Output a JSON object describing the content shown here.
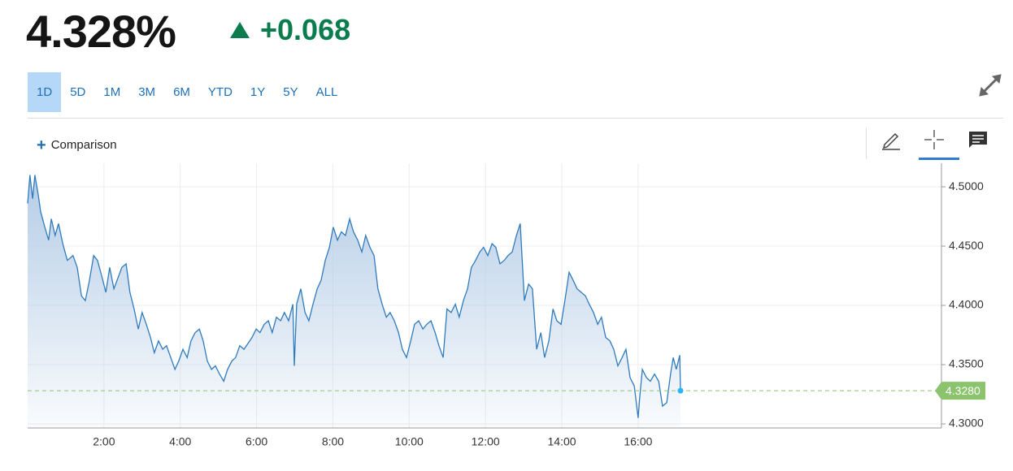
{
  "header": {
    "price": "4.328%",
    "change": "+0.068"
  },
  "ranges": [
    "1D",
    "5D",
    "1M",
    "3M",
    "6M",
    "YTD",
    "1Y",
    "5Y",
    "ALL"
  ],
  "selected_range": "1D",
  "toolbar": {
    "comparison": "Comparison"
  },
  "chart_data": {
    "type": "line",
    "color": "#2f7bbd",
    "x": [
      0,
      0.06,
      0.13,
      0.19,
      0.28,
      0.34,
      0.45,
      0.55,
      0.62,
      0.72,
      0.81,
      0.92,
      1.04,
      1.19,
      1.3,
      1.41,
      1.51,
      1.62,
      1.73,
      1.83,
      1.94,
      2.05,
      2.15,
      2.26,
      2.47,
      2.58,
      2.68,
      2.79,
      2.9,
      3.0,
      3.11,
      3.22,
      3.32,
      3.43,
      3.54,
      3.64,
      3.75,
      3.86,
      3.96,
      4.07,
      4.18,
      4.28,
      4.39,
      4.5,
      4.6,
      4.71,
      4.82,
      4.92,
      5.03,
      5.14,
      5.24,
      5.35,
      5.45,
      5.56,
      5.67,
      5.88,
      5.99,
      6.09,
      6.2,
      6.31,
      6.41,
      6.52,
      6.63,
      6.73,
      6.84,
      6.95,
      6.99,
      7.05,
      7.16,
      7.27,
      7.37,
      7.48,
      7.59,
      7.69,
      7.8,
      7.91,
      8.01,
      8.12,
      8.22,
      8.33,
      8.44,
      8.54,
      8.65,
      8.76,
      8.86,
      8.97,
      9.08,
      9.18,
      9.29,
      9.4,
      9.5,
      9.61,
      9.72,
      9.82,
      9.93,
      10.04,
      10.14,
      10.25,
      10.36,
      10.46,
      10.57,
      10.68,
      10.78,
      10.89,
      10.99,
      11.1,
      11.21,
      11.31,
      11.42,
      11.53,
      11.63,
      11.74,
      11.85,
      11.95,
      12.06,
      12.17,
      12.27,
      12.38,
      12.49,
      12.59,
      12.7,
      12.81,
      12.91,
      13.02,
      13.13,
      13.23,
      13.34,
      13.45,
      13.55,
      13.66,
      13.77,
      13.87,
      13.98,
      14.08,
      14.19,
      14.3,
      14.4,
      14.51,
      14.62,
      14.72,
      14.83,
      14.94,
      15.04,
      15.15,
      15.26,
      15.36,
      15.47,
      15.58,
      15.68,
      15.79,
      15.9,
      16.0,
      16.04,
      16.11,
      16.22,
      16.32,
      16.43,
      16.54,
      16.64,
      16.75,
      16.85,
      16.92,
      17.0,
      17.09,
      17.11
    ],
    "values": [
      4.486,
      4.51,
      4.49,
      4.51,
      4.493,
      4.479,
      4.466,
      4.455,
      4.473,
      4.459,
      4.469,
      4.452,
      4.438,
      4.442,
      4.432,
      4.408,
      4.404,
      4.421,
      4.442,
      4.438,
      4.425,
      4.411,
      4.432,
      4.414,
      4.432,
      4.435,
      4.411,
      4.397,
      4.38,
      4.394,
      4.384,
      4.373,
      4.36,
      4.37,
      4.363,
      4.366,
      4.356,
      4.346,
      4.353,
      4.363,
      4.356,
      4.37,
      4.377,
      4.38,
      4.37,
      4.353,
      4.346,
      4.349,
      4.342,
      4.336,
      4.346,
      4.353,
      4.356,
      4.366,
      4.363,
      4.373,
      4.38,
      4.377,
      4.384,
      4.387,
      4.377,
      4.39,
      4.387,
      4.394,
      4.387,
      4.401,
      4.349,
      4.401,
      4.414,
      4.394,
      4.387,
      4.401,
      4.414,
      4.421,
      4.438,
      4.449,
      4.466,
      4.455,
      4.462,
      4.459,
      4.473,
      4.462,
      4.455,
      4.445,
      4.459,
      4.449,
      4.442,
      4.414,
      4.401,
      4.39,
      4.394,
      4.387,
      4.377,
      4.363,
      4.356,
      4.37,
      4.384,
      4.387,
      4.38,
      4.384,
      4.387,
      4.377,
      4.366,
      4.356,
      4.397,
      4.394,
      4.401,
      4.39,
      4.404,
      4.414,
      4.432,
      4.438,
      4.445,
      4.449,
      4.442,
      4.452,
      4.449,
      4.435,
      4.438,
      4.442,
      4.445,
      4.459,
      4.469,
      4.404,
      4.418,
      4.414,
      4.363,
      4.377,
      4.356,
      4.37,
      4.397,
      4.387,
      4.384,
      4.404,
      4.428,
      4.421,
      4.414,
      4.411,
      4.408,
      4.401,
      4.394,
      4.384,
      4.39,
      4.373,
      4.37,
      4.363,
      4.349,
      4.356,
      4.363,
      4.339,
      4.332,
      4.305,
      4.322,
      4.346,
      4.339,
      4.336,
      4.342,
      4.336,
      4.315,
      4.318,
      4.342,
      4.356,
      4.346,
      4.358,
      4.328
    ],
    "xlim": [
      0,
      23.95
    ],
    "ylim": [
      4.2966,
      4.5199
    ],
    "xticks": [
      {
        "value": 2,
        "label": "2:00"
      },
      {
        "value": 4,
        "label": "4:00"
      },
      {
        "value": 6,
        "label": "6:00"
      },
      {
        "value": 8,
        "label": "8:00"
      },
      {
        "value": 10,
        "label": "10:00"
      },
      {
        "value": 12,
        "label": "12:00"
      },
      {
        "value": 14,
        "label": "14:00"
      },
      {
        "value": 16,
        "label": "16:00"
      }
    ],
    "yticks": [
      {
        "value": 4.3,
        "label": "4.3000"
      },
      {
        "value": 4.35,
        "label": "4.3500"
      },
      {
        "value": 4.4,
        "label": "4.4000"
      },
      {
        "value": 4.45,
        "label": "4.4500"
      },
      {
        "value": 4.5,
        "label": "4.5000"
      }
    ],
    "grid": true,
    "last_value": {
      "value": 4.328,
      "label": "4.3280"
    },
    "last_color": "#8cc46e"
  }
}
